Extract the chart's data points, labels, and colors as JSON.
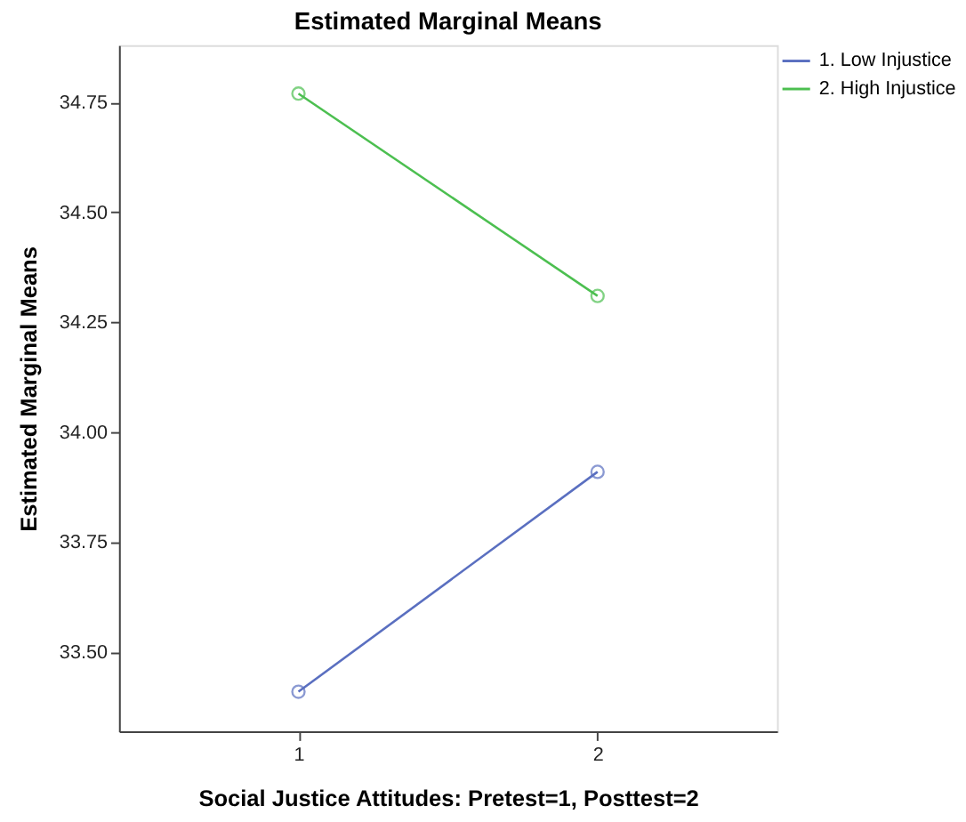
{
  "chart_data": {
    "type": "line",
    "title": "Estimated Marginal Means",
    "xlabel": "Social Justice Attitudes: Pretest=1, Posttest=2",
    "ylabel": "Estimated Marginal Means",
    "categories": [
      "1",
      "2"
    ],
    "series": [
      {
        "name": "1.  Low Injustice",
        "color": "#5a6fc0",
        "values": [
          33.41,
          33.91
        ]
      },
      {
        "name": "2.  High Injustice",
        "color": "#4cbf50",
        "values": [
          34.77,
          34.31
        ]
      }
    ],
    "ylim": [
      33.32,
      34.88
    ],
    "yticks": [
      {
        "value": 33.5,
        "label": "33.50"
      },
      33.75,
      {
        "value": 34,
        "label": "34.00"
      },
      34.25,
      {
        "value": 34.5,
        "label": "34.50"
      },
      34.75
    ],
    "marker": "circle",
    "line_style": "solid",
    "grid": false,
    "legend": "right"
  }
}
